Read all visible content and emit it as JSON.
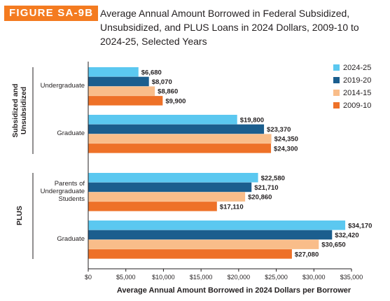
{
  "figure": {
    "label": "FIGURE SA-9B",
    "title": "Average Annual Amount Borrowed in Federal Subsidized, Unsubsidized, and PLUS Loans in 2024 Dollars, 2009-10 to 2024-25, Selected Years"
  },
  "colors": {
    "badge": "#f47b20",
    "2024-25": "#5bc8f0",
    "2019-20": "#1b5e8e",
    "2014-15": "#f9bd8a",
    "2009-10": "#ee7128"
  },
  "chart_data": {
    "type": "bar",
    "orientation": "horizontal",
    "title": "",
    "xlabel": "Average Annual Amount Borrowed in 2024 Dollars per Borrower",
    "ylabel": "",
    "xlim": [
      0,
      35000
    ],
    "xticks": [
      "$0",
      "$5,000",
      "$10,000",
      "$15,000",
      "$20,000",
      "$25,000",
      "$30,000",
      "$35,000"
    ],
    "grid": false,
    "legend_position": "top-right",
    "groups": [
      {
        "name": "Subsidized and\nUnsubsidized",
        "categories": [
          "Undergraduate",
          "Graduate"
        ]
      },
      {
        "name": "PLUS",
        "categories": [
          "Parents of\nUndergraduate\nStudents",
          "Graduate"
        ]
      }
    ],
    "categories": [
      "Undergraduate",
      "Graduate",
      "Parents of\nUndergraduate\nStudents",
      "Graduate"
    ],
    "series": [
      {
        "name": "2024-25",
        "values": [
          6680,
          19800,
          22580,
          34170
        ],
        "labels": [
          "$6,680",
          "$19,800",
          "$22,580",
          "$34,170"
        ]
      },
      {
        "name": "2019-20",
        "values": [
          8070,
          23370,
          21710,
          32420
        ],
        "labels": [
          "$8,070",
          "$23,370",
          "$21,710",
          "$32,420"
        ]
      },
      {
        "name": "2014-15",
        "values": [
          8860,
          24350,
          20860,
          30650
        ],
        "labels": [
          "$8,860",
          "$24,350",
          "$20,860",
          "$30,650"
        ]
      },
      {
        "name": "2009-10",
        "values": [
          9900,
          24300,
          17110,
          27080
        ],
        "labels": [
          "$9,900",
          "$24,300",
          "$17,110",
          "$27,080"
        ]
      }
    ]
  }
}
